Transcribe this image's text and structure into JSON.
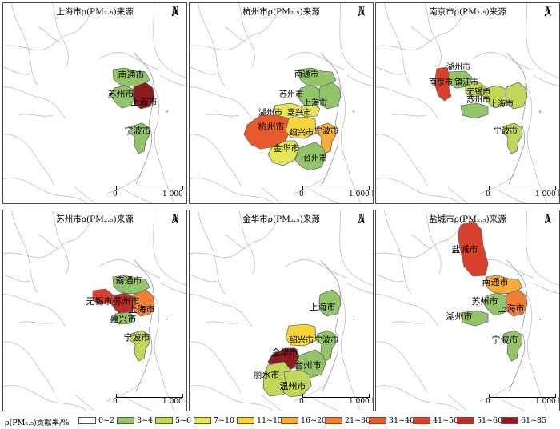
{
  "legend": {
    "title": "ρ(PM₂.₅)贡献率/%",
    "items": [
      {
        "label": "0~2",
        "color": "#ffffff"
      },
      {
        "label": "3~4",
        "color": "#93c46a"
      },
      {
        "label": "5~6",
        "color": "#bfd85b"
      },
      {
        "label": "7~10",
        "color": "#e6e65a"
      },
      {
        "label": "11~15",
        "color": "#f5d53b"
      },
      {
        "label": "16~20",
        "color": "#f6ab3a"
      },
      {
        "label": "21~30",
        "color": "#ef7f33"
      },
      {
        "label": "31~40",
        "color": "#e65a2e"
      },
      {
        "label": "41~50",
        "color": "#d9402b"
      },
      {
        "label": "51~60",
        "color": "#b72e2a"
      },
      {
        "label": "61~85",
        "color": "#8b1b1d"
      }
    ]
  },
  "north_label": "N",
  "scale": {
    "zero": "0",
    "max": "1 000 km"
  },
  "panels": [
    {
      "title": "上海市ρ(PM₂.₅)来源",
      "cities": [
        {
          "name": "南通市",
          "category": "3~4"
        },
        {
          "name": "苏州市",
          "category": "3~4"
        },
        {
          "name": "上海市",
          "category": "61~85"
        },
        {
          "name": "宁波市",
          "category": "3~4"
        }
      ]
    },
    {
      "title": "杭州市ρ(PM₂.₅)来源",
      "cities": [
        {
          "name": "南通市",
          "category": "3~4"
        },
        {
          "name": "苏州市",
          "category": "3~4"
        },
        {
          "name": "上海市",
          "category": "3~4"
        },
        {
          "name": "湖州市",
          "category": "7~10"
        },
        {
          "name": "嘉兴市",
          "category": "7~10"
        },
        {
          "name": "杭州市",
          "category": "31~40"
        },
        {
          "name": "绍兴市",
          "category": "11~15"
        },
        {
          "name": "宁波市",
          "category": "16~20"
        },
        {
          "name": "金华市",
          "category": "7~10"
        },
        {
          "name": "台州市",
          "category": "3~4"
        }
      ]
    },
    {
      "title": "南京市ρ(PM₂.₅)来源",
      "cities": [
        {
          "name": "湖州市",
          "category": "3~4"
        },
        {
          "name": "南京市",
          "category": "41~50"
        },
        {
          "name": "镇江市",
          "category": "3~4"
        },
        {
          "name": "无锡市",
          "category": "5~6"
        },
        {
          "name": "苏州市",
          "category": "5~6"
        },
        {
          "name": "上海市",
          "category": "5~6"
        },
        {
          "name": "宁波市",
          "category": "5~6"
        }
      ]
    },
    {
      "title": "苏州市ρ(PM₂.₅)来源",
      "cities": [
        {
          "name": "南通市",
          "category": "3~4"
        },
        {
          "name": "无锡市",
          "category": "41~50"
        },
        {
          "name": "苏州市",
          "category": "51~60"
        },
        {
          "name": "上海市",
          "category": "21~30"
        },
        {
          "name": "嘉兴市",
          "category": "3~4"
        },
        {
          "name": "宁波市",
          "category": "5~6"
        }
      ]
    },
    {
      "title": "金华市ρ(PM₂.₅)来源",
      "cities": [
        {
          "name": "上海市",
          "category": "3~4"
        },
        {
          "name": "绍兴市",
          "category": "11~15"
        },
        {
          "name": "宁波市",
          "category": "3~4"
        },
        {
          "name": "金华市",
          "category": "61~85"
        },
        {
          "name": "丽水市",
          "category": "5~6"
        },
        {
          "name": "台州市",
          "category": "3~4"
        },
        {
          "name": "温州市",
          "category": "5~6"
        }
      ]
    },
    {
      "title": "盐城市ρ(PM₂.₅)来源",
      "cities": [
        {
          "name": "盐城市",
          "category": "41~50"
        },
        {
          "name": "南通市",
          "category": "16~20"
        },
        {
          "name": "苏州市",
          "category": "3~4"
        },
        {
          "name": "湖州市",
          "category": "3~4"
        },
        {
          "name": "上海市",
          "category": "21~30"
        },
        {
          "name": "宁波市",
          "category": "3~4"
        }
      ]
    }
  ]
}
